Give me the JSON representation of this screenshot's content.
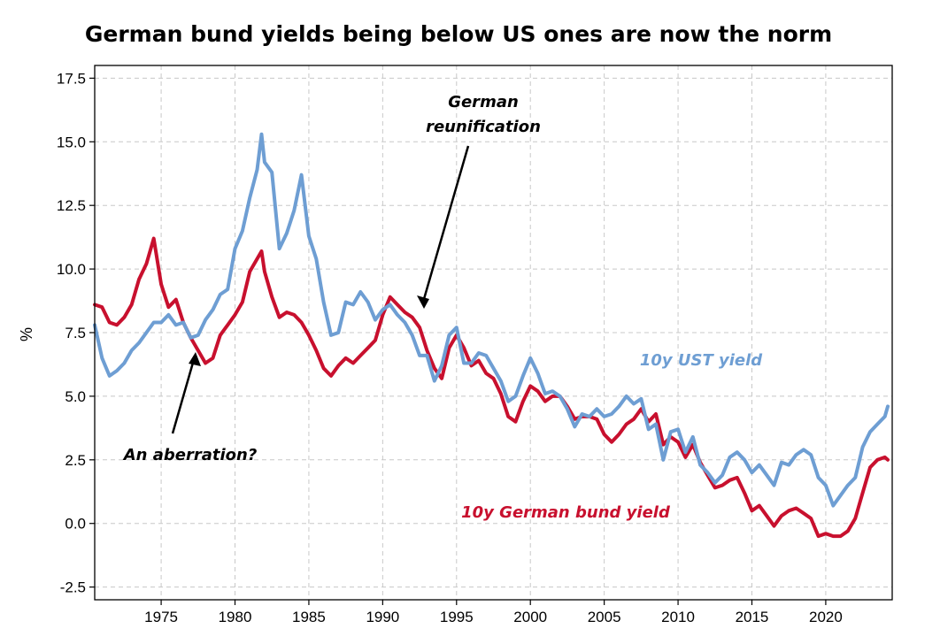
{
  "chart_data": {
    "type": "line",
    "title": "German bund yields being below US ones are now the norm",
    "xlabel": "",
    "ylabel": "%",
    "xlim": [
      1970.5,
      2024.5
    ],
    "ylim": [
      -3.0,
      18.0
    ],
    "x_ticks": [
      1975,
      1980,
      1985,
      1990,
      1995,
      2000,
      2005,
      2010,
      2015,
      2020
    ],
    "x_tick_labels": [
      "1975",
      "1980",
      "1985",
      "1990",
      "1995",
      "2000",
      "2005",
      "2010",
      "2015",
      "2020"
    ],
    "y_ticks": [
      -2.5,
      0.0,
      2.5,
      5.0,
      7.5,
      10.0,
      12.5,
      15.0,
      17.5
    ],
    "y_tick_labels": [
      "-2.5",
      "0.0",
      "2.5",
      "5.0",
      "7.5",
      "10.0",
      "12.5",
      "15.0",
      "17.5"
    ],
    "grid": true,
    "series": [
      {
        "name": "10y German bund yield",
        "label_text": "10y German bund yield",
        "color": "#c8102e",
        "points": [
          [
            1970.5,
            8.6
          ],
          [
            1971.0,
            8.5
          ],
          [
            1971.5,
            7.9
          ],
          [
            1972.0,
            7.8
          ],
          [
            1972.5,
            8.1
          ],
          [
            1973.0,
            8.6
          ],
          [
            1973.5,
            9.6
          ],
          [
            1974.0,
            10.2
          ],
          [
            1974.5,
            11.2
          ],
          [
            1975.0,
            9.4
          ],
          [
            1975.5,
            8.5
          ],
          [
            1976.0,
            8.8
          ],
          [
            1976.5,
            7.9
          ],
          [
            1977.0,
            7.3
          ],
          [
            1977.5,
            6.8
          ],
          [
            1978.0,
            6.3
          ],
          [
            1978.5,
            6.5
          ],
          [
            1979.0,
            7.4
          ],
          [
            1979.5,
            7.8
          ],
          [
            1980.0,
            8.2
          ],
          [
            1980.5,
            8.7
          ],
          [
            1981.0,
            9.9
          ],
          [
            1981.5,
            10.4
          ],
          [
            1981.8,
            10.7
          ],
          [
            1982.0,
            9.9
          ],
          [
            1982.5,
            8.9
          ],
          [
            1983.0,
            8.1
          ],
          [
            1983.5,
            8.3
          ],
          [
            1984.0,
            8.2
          ],
          [
            1984.5,
            7.9
          ],
          [
            1985.0,
            7.4
          ],
          [
            1985.5,
            6.8
          ],
          [
            1986.0,
            6.1
          ],
          [
            1986.5,
            5.8
          ],
          [
            1987.0,
            6.2
          ],
          [
            1987.5,
            6.5
          ],
          [
            1988.0,
            6.3
          ],
          [
            1988.5,
            6.6
          ],
          [
            1989.0,
            6.9
          ],
          [
            1989.5,
            7.2
          ],
          [
            1990.0,
            8.2
          ],
          [
            1990.5,
            8.9
          ],
          [
            1991.0,
            8.6
          ],
          [
            1991.5,
            8.3
          ],
          [
            1992.0,
            8.1
          ],
          [
            1992.5,
            7.7
          ],
          [
            1993.0,
            6.8
          ],
          [
            1993.5,
            6.1
          ],
          [
            1994.0,
            5.7
          ],
          [
            1994.5,
            6.9
          ],
          [
            1995.0,
            7.4
          ],
          [
            1995.5,
            6.9
          ],
          [
            1996.0,
            6.2
          ],
          [
            1996.5,
            6.4
          ],
          [
            1997.0,
            5.9
          ],
          [
            1997.5,
            5.7
          ],
          [
            1998.0,
            5.1
          ],
          [
            1998.5,
            4.2
          ],
          [
            1999.0,
            4.0
          ],
          [
            1999.5,
            4.8
          ],
          [
            2000.0,
            5.4
          ],
          [
            2000.5,
            5.2
          ],
          [
            2001.0,
            4.8
          ],
          [
            2001.5,
            5.0
          ],
          [
            2002.0,
            5.0
          ],
          [
            2002.5,
            4.6
          ],
          [
            2003.0,
            4.1
          ],
          [
            2003.5,
            4.2
          ],
          [
            2004.0,
            4.2
          ],
          [
            2004.5,
            4.1
          ],
          [
            2005.0,
            3.5
          ],
          [
            2005.5,
            3.2
          ],
          [
            2006.0,
            3.5
          ],
          [
            2006.5,
            3.9
          ],
          [
            2007.0,
            4.1
          ],
          [
            2007.5,
            4.5
          ],
          [
            2008.0,
            4.0
          ],
          [
            2008.5,
            4.3
          ],
          [
            2009.0,
            3.1
          ],
          [
            2009.5,
            3.4
          ],
          [
            2010.0,
            3.2
          ],
          [
            2010.5,
            2.6
          ],
          [
            2011.0,
            3.1
          ],
          [
            2011.5,
            2.4
          ],
          [
            2012.0,
            1.9
          ],
          [
            2012.5,
            1.4
          ],
          [
            2013.0,
            1.5
          ],
          [
            2013.5,
            1.7
          ],
          [
            2014.0,
            1.8
          ],
          [
            2014.5,
            1.2
          ],
          [
            2015.0,
            0.5
          ],
          [
            2015.5,
            0.7
          ],
          [
            2016.0,
            0.3
          ],
          [
            2016.5,
            -0.1
          ],
          [
            2017.0,
            0.3
          ],
          [
            2017.5,
            0.5
          ],
          [
            2018.0,
            0.6
          ],
          [
            2018.5,
            0.4
          ],
          [
            2019.0,
            0.2
          ],
          [
            2019.5,
            -0.5
          ],
          [
            2020.0,
            -0.4
          ],
          [
            2020.5,
            -0.5
          ],
          [
            2021.0,
            -0.5
          ],
          [
            2021.5,
            -0.3
          ],
          [
            2022.0,
            0.2
          ],
          [
            2022.5,
            1.2
          ],
          [
            2023.0,
            2.2
          ],
          [
            2023.5,
            2.5
          ],
          [
            2024.0,
            2.6
          ],
          [
            2024.2,
            2.5
          ]
        ]
      },
      {
        "name": "10y UST yield",
        "label_text": "10y UST yield",
        "color": "#6e9ed3",
        "points": [
          [
            1970.5,
            7.8
          ],
          [
            1971.0,
            6.5
          ],
          [
            1971.5,
            5.8
          ],
          [
            1972.0,
            6.0
          ],
          [
            1972.5,
            6.3
          ],
          [
            1973.0,
            6.8
          ],
          [
            1973.5,
            7.1
          ],
          [
            1974.0,
            7.5
          ],
          [
            1974.5,
            7.9
          ],
          [
            1975.0,
            7.9
          ],
          [
            1975.5,
            8.2
          ],
          [
            1976.0,
            7.8
          ],
          [
            1976.5,
            7.9
          ],
          [
            1977.0,
            7.3
          ],
          [
            1977.5,
            7.4
          ],
          [
            1978.0,
            8.0
          ],
          [
            1978.5,
            8.4
          ],
          [
            1979.0,
            9.0
          ],
          [
            1979.5,
            9.2
          ],
          [
            1980.0,
            10.8
          ],
          [
            1980.5,
            11.5
          ],
          [
            1981.0,
            12.8
          ],
          [
            1981.5,
            13.9
          ],
          [
            1981.8,
            15.3
          ],
          [
            1982.0,
            14.2
          ],
          [
            1982.5,
            13.8
          ],
          [
            1983.0,
            10.8
          ],
          [
            1983.5,
            11.4
          ],
          [
            1984.0,
            12.3
          ],
          [
            1984.5,
            13.7
          ],
          [
            1985.0,
            11.3
          ],
          [
            1985.5,
            10.4
          ],
          [
            1986.0,
            8.7
          ],
          [
            1986.5,
            7.4
          ],
          [
            1987.0,
            7.5
          ],
          [
            1987.5,
            8.7
          ],
          [
            1988.0,
            8.6
          ],
          [
            1988.5,
            9.1
          ],
          [
            1989.0,
            8.7
          ],
          [
            1989.5,
            8.0
          ],
          [
            1990.0,
            8.4
          ],
          [
            1990.5,
            8.6
          ],
          [
            1991.0,
            8.2
          ],
          [
            1991.5,
            7.9
          ],
          [
            1992.0,
            7.4
          ],
          [
            1992.5,
            6.6
          ],
          [
            1993.0,
            6.6
          ],
          [
            1993.5,
            5.6
          ],
          [
            1994.0,
            6.2
          ],
          [
            1994.5,
            7.4
          ],
          [
            1995.0,
            7.7
          ],
          [
            1995.5,
            6.3
          ],
          [
            1996.0,
            6.3
          ],
          [
            1996.5,
            6.7
          ],
          [
            1997.0,
            6.6
          ],
          [
            1997.5,
            6.1
          ],
          [
            1998.0,
            5.6
          ],
          [
            1998.5,
            4.8
          ],
          [
            1999.0,
            5.0
          ],
          [
            1999.5,
            5.8
          ],
          [
            2000.0,
            6.5
          ],
          [
            2000.5,
            5.9
          ],
          [
            2001.0,
            5.1
          ],
          [
            2001.5,
            5.2
          ],
          [
            2002.0,
            5.0
          ],
          [
            2002.5,
            4.5
          ],
          [
            2003.0,
            3.8
          ],
          [
            2003.5,
            4.3
          ],
          [
            2004.0,
            4.2
          ],
          [
            2004.5,
            4.5
          ],
          [
            2005.0,
            4.2
          ],
          [
            2005.5,
            4.3
          ],
          [
            2006.0,
            4.6
          ],
          [
            2006.5,
            5.0
          ],
          [
            2007.0,
            4.7
          ],
          [
            2007.5,
            4.9
          ],
          [
            2008.0,
            3.7
          ],
          [
            2008.5,
            3.9
          ],
          [
            2009.0,
            2.5
          ],
          [
            2009.5,
            3.6
          ],
          [
            2010.0,
            3.7
          ],
          [
            2010.5,
            2.8
          ],
          [
            2011.0,
            3.4
          ],
          [
            2011.5,
            2.3
          ],
          [
            2012.0,
            2.0
          ],
          [
            2012.5,
            1.6
          ],
          [
            2013.0,
            1.9
          ],
          [
            2013.5,
            2.6
          ],
          [
            2014.0,
            2.8
          ],
          [
            2014.5,
            2.5
          ],
          [
            2015.0,
            2.0
          ],
          [
            2015.5,
            2.3
          ],
          [
            2016.0,
            1.9
          ],
          [
            2016.5,
            1.5
          ],
          [
            2017.0,
            2.4
          ],
          [
            2017.5,
            2.3
          ],
          [
            2018.0,
            2.7
          ],
          [
            2018.5,
            2.9
          ],
          [
            2019.0,
            2.7
          ],
          [
            2019.5,
            1.8
          ],
          [
            2020.0,
            1.5
          ],
          [
            2020.5,
            0.7
          ],
          [
            2021.0,
            1.1
          ],
          [
            2021.5,
            1.5
          ],
          [
            2022.0,
            1.8
          ],
          [
            2022.5,
            3.0
          ],
          [
            2023.0,
            3.6
          ],
          [
            2023.5,
            3.9
          ],
          [
            2024.0,
            4.2
          ],
          [
            2024.2,
            4.6
          ]
        ]
      }
    ],
    "annotations": [
      {
        "name": "reunification",
        "lines": [
          "German",
          "reunification"
        ],
        "xy": [
          1992.2,
          8.3
        ],
        "xytext": [
          1992.6,
          15.6
        ]
      },
      {
        "name": "aberration",
        "lines": [
          "An aberration?"
        ],
        "xy": [
          1977.3,
          6.6
        ],
        "xytext": [
          1976.0,
          2.7
        ]
      }
    ]
  }
}
